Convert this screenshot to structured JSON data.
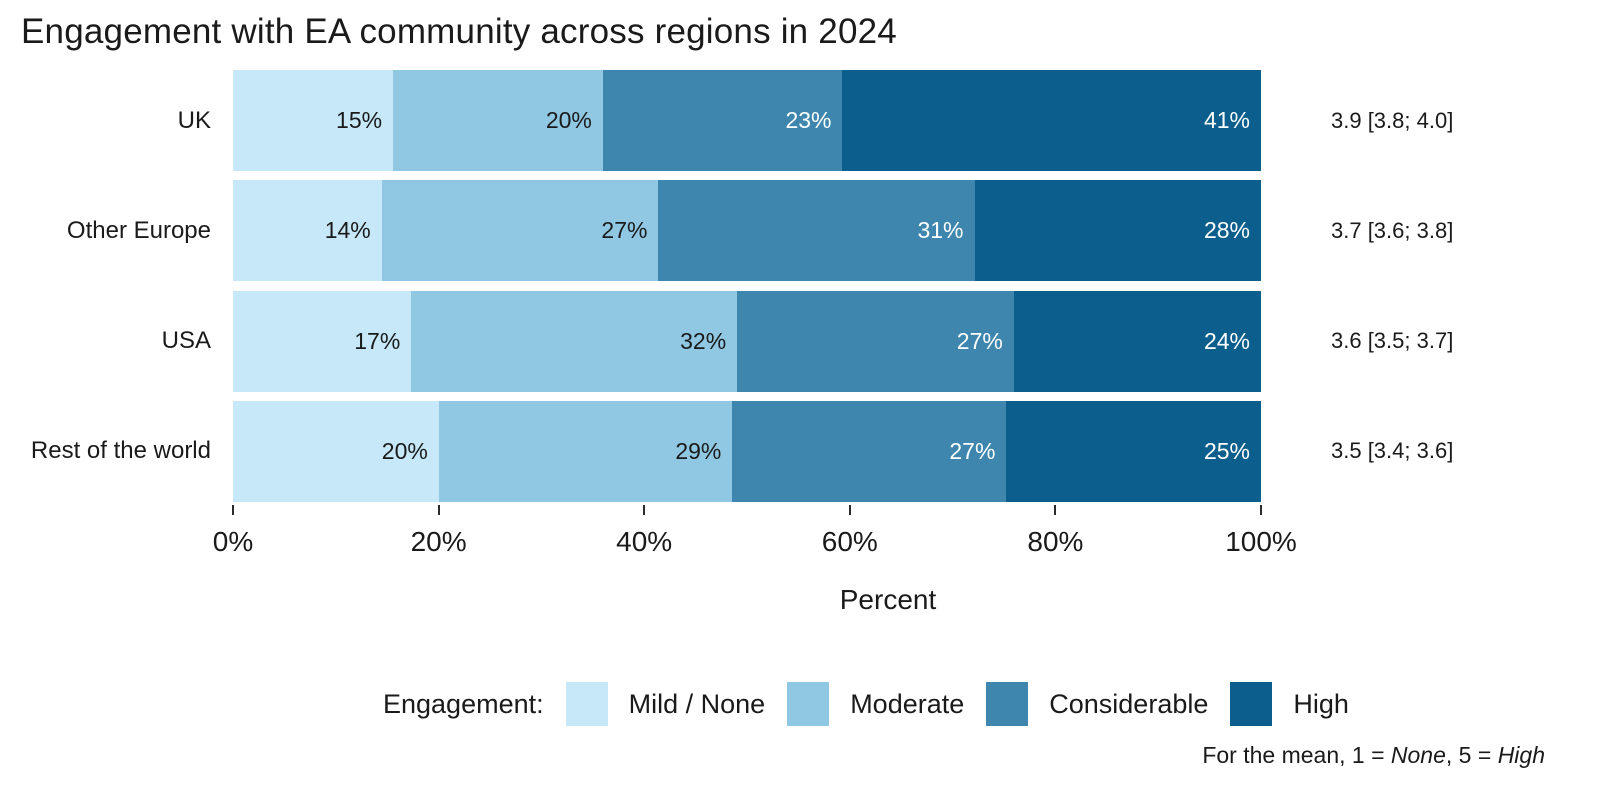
{
  "chart_data": {
    "type": "bar",
    "orientation": "horizontal-stacked",
    "title": "Engagement with EA community across regions in 2024",
    "categories": [
      "UK",
      "Other Europe",
      "USA",
      "Rest of the world"
    ],
    "series": [
      {
        "name": "Mild / None",
        "color": "#C7E8F8",
        "label_color": "#1A1A1A",
        "values": [
          15,
          14,
          17,
          20
        ]
      },
      {
        "name": "Moderate",
        "color": "#90C8E3",
        "label_color": "#1A1A1A",
        "values": [
          20,
          27,
          32,
          29
        ]
      },
      {
        "name": "Considerable",
        "color": "#3E86AD",
        "label_color": "#FFFFFF",
        "values": [
          23,
          31,
          27,
          27
        ]
      },
      {
        "name": "High",
        "color": "#0C5E8C",
        "label_color": "#FFFFFF",
        "values": [
          41,
          28,
          24,
          25
        ]
      }
    ],
    "means": [
      "3.9 [3.8; 4.0]",
      "3.7 [3.6; 3.8]",
      "3.6 [3.5; 3.7]",
      "3.5 [3.4; 3.6]"
    ],
    "xlabel": "Percent",
    "x_ticks": [
      "0%",
      "20%",
      "40%",
      "60%",
      "80%",
      "100%"
    ],
    "x_tick_values": [
      0,
      20,
      40,
      60,
      80,
      100
    ],
    "xlim": [
      0,
      100
    ],
    "value_suffix": "%",
    "legend_title": "Engagement:",
    "legend_position": "bottom",
    "grid": false
  },
  "footnote": {
    "part1": "For the mean, 1 = ",
    "part2": "None",
    "part3": ", 5 = ",
    "part4": "High"
  }
}
